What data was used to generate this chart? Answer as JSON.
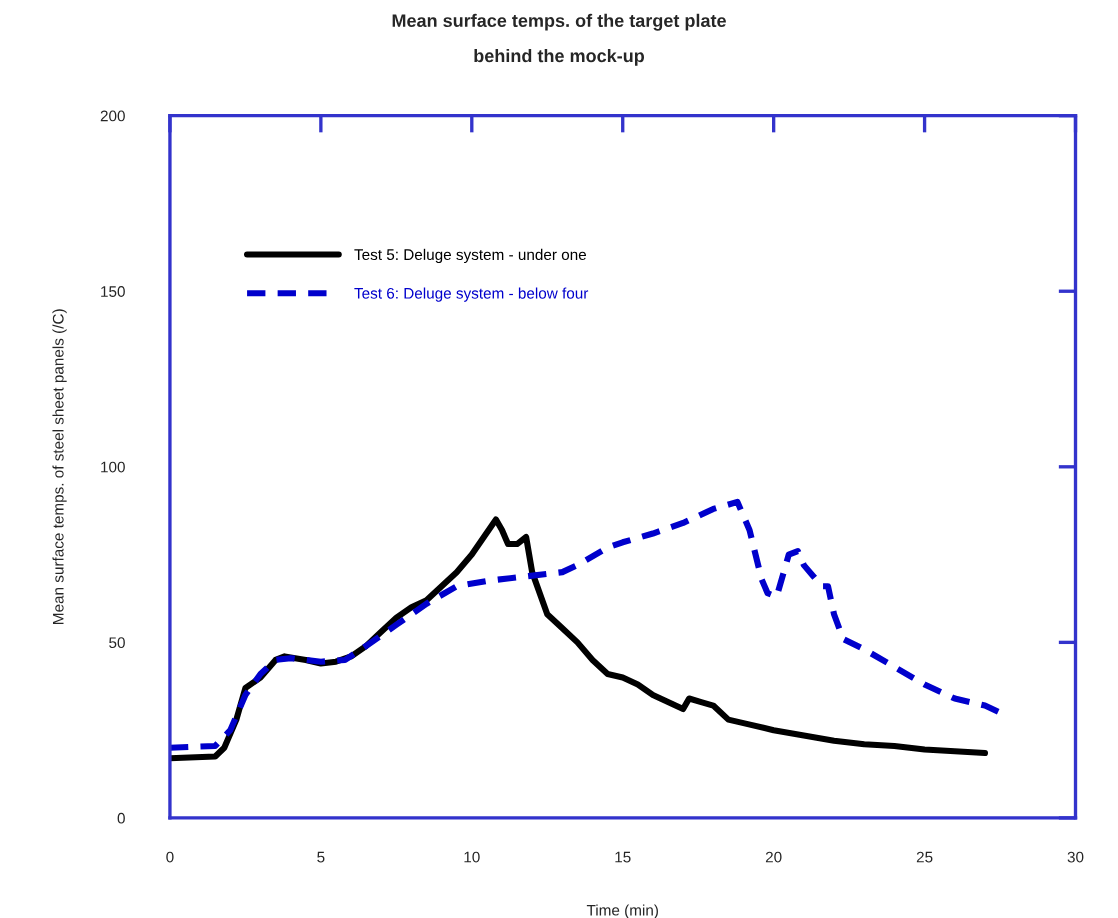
{
  "chart_data": {
    "type": "line",
    "title": "Mean surface temps. of the target plate\nbehind the mock-up",
    "xlabel": "Time (min)",
    "ylabel": "Mean surface temps. of steel sheet panels (/C)",
    "xlim": [
      0,
      30
    ],
    "xticks": [
      0,
      5,
      10,
      15,
      20,
      25,
      30
    ],
    "ylim": [
      0,
      200
    ],
    "yticks": [
      0,
      50,
      100,
      150,
      200
    ],
    "grid": false,
    "legend": "top left",
    "series": [
      {
        "name": "Test 5: Deluge system - under one",
        "color": "#000000",
        "line_style": "solid",
        "x": [
          0,
          1.5,
          1.8,
          2.2,
          2.5,
          3,
          3.5,
          3.8,
          4.5,
          5,
          5.5,
          6,
          6.5,
          7,
          7.5,
          8,
          8.5,
          9,
          9.5,
          10,
          10.4,
          10.8,
          11,
          11.2,
          11.5,
          11.8,
          12,
          12.5,
          13,
          13.5,
          14,
          14.5,
          15,
          15.5,
          16,
          16.5,
          17,
          17.2,
          17.6,
          18,
          18.5,
          19,
          20,
          21,
          22,
          23,
          24,
          25,
          26,
          27
        ],
        "values": [
          17,
          17.5,
          20,
          28,
          37,
          40,
          45,
          46,
          45,
          44,
          44.5,
          46,
          49,
          53,
          57,
          60,
          62,
          66,
          70,
          75,
          80,
          85,
          82,
          78,
          78,
          80,
          70,
          58,
          54,
          50,
          45,
          41,
          40,
          38,
          35,
          33,
          31,
          34,
          33,
          32,
          28,
          27,
          25,
          23.5,
          22,
          21,
          20.5,
          19.5,
          19,
          18.5
        ]
      },
      {
        "name": "Test 6: Deluge system - below four",
        "color": "#0000cc",
        "line_style": "dashed",
        "x": [
          0,
          1.5,
          2,
          2.5,
          3,
          3.5,
          4,
          5,
          5.8,
          6.5,
          7.5,
          8.5,
          9.5,
          10.5,
          11.5,
          12.5,
          13,
          13.5,
          14.5,
          15,
          16,
          17,
          18,
          18.8,
          19.2,
          19.6,
          19.8,
          20.1,
          20.4,
          20.5,
          20.8,
          21,
          21.3,
          21.6,
          21.8,
          22,
          22.3,
          23,
          24,
          25,
          26,
          27,
          27.5
        ],
        "values": [
          20,
          20.5,
          25,
          35,
          41,
          45,
          45.5,
          44.5,
          45,
          49,
          55,
          61,
          66,
          67.5,
          68.5,
          69.5,
          70,
          72,
          77,
          78.5,
          81,
          84,
          88,
          90,
          82,
          68,
          64,
          63,
          72,
          75,
          76,
          72,
          69,
          66,
          66,
          58,
          51,
          48,
          43,
          38,
          34,
          32,
          30
        ]
      }
    ]
  }
}
